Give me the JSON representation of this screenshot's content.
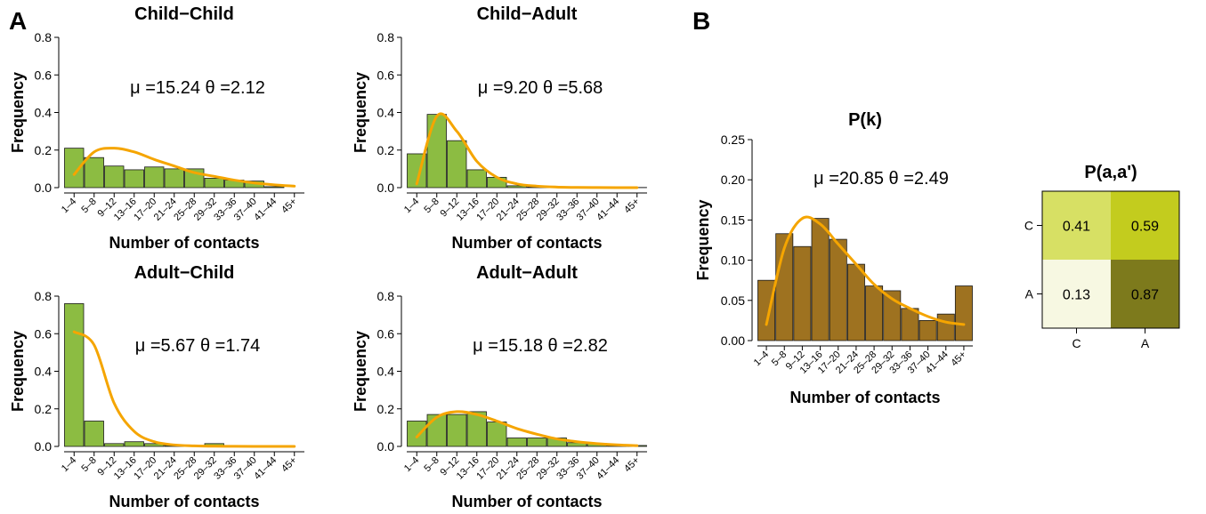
{
  "panels": {
    "a_label": "A",
    "b_label": "B"
  },
  "chart_data": [
    {
      "id": "cc",
      "type": "bar",
      "title": "Child−Child",
      "xlabel": "Number of contacts",
      "ylabel": "Frequency",
      "categories": [
        "1–4",
        "5–8",
        "9–12",
        "13–16",
        "17–20",
        "21–24",
        "25–28",
        "29–32",
        "33–36",
        "37–40",
        "41–44",
        "45+"
      ],
      "values": [
        0.21,
        0.16,
        0.115,
        0.095,
        0.11,
        0.1,
        0.1,
        0.05,
        0.04,
        0.035,
        0.005,
        0.0
      ],
      "fit": [
        0.07,
        0.19,
        0.21,
        0.19,
        0.15,
        0.115,
        0.08,
        0.06,
        0.04,
        0.025,
        0.015,
        0.008
      ],
      "annotation": "μ =15.24  θ =2.12",
      "ylim": [
        0,
        0.8
      ],
      "yticks": [
        "0.0",
        "0.2",
        "0.4",
        "0.6",
        "0.8"
      ],
      "ytick_values": [
        0,
        0.2,
        0.4,
        0.6,
        0.8
      ],
      "color": "#8cbc42",
      "fit_color": "#f5a500"
    },
    {
      "id": "ca",
      "type": "bar",
      "title": "Child−Adult",
      "xlabel": "Number of contacts",
      "ylabel": "Frequency",
      "categories": [
        "1–4",
        "5–8",
        "9–12",
        "13–16",
        "17–20",
        "21–24",
        "25–28",
        "29–32",
        "33–36",
        "37–40",
        "41–44",
        "45+"
      ],
      "values": [
        0.18,
        0.39,
        0.25,
        0.095,
        0.055,
        0.01,
        0.004,
        0.003,
        0.002,
        0.001,
        0.001,
        0.001
      ],
      "fit": [
        0.02,
        0.38,
        0.3,
        0.14,
        0.055,
        0.02,
        0.008,
        0.003,
        0.001,
        0.0005,
        0.0002,
        0.0001
      ],
      "annotation": "μ =9.20  θ =5.68",
      "ylim": [
        0,
        0.8
      ],
      "yticks": [
        "0.0",
        "0.2",
        "0.4",
        "0.6",
        "0.8"
      ],
      "ytick_values": [
        0,
        0.2,
        0.4,
        0.6,
        0.8
      ],
      "color": "#8cbc42",
      "fit_color": "#f5a500"
    },
    {
      "id": "ac",
      "type": "bar",
      "title": "Adult−Child",
      "xlabel": "Number of contacts",
      "ylabel": "Frequency",
      "categories": [
        "1–4",
        "5–8",
        "9–12",
        "13–16",
        "17–20",
        "21–24",
        "25–28",
        "29–32",
        "33–36",
        "37–40",
        "41–44",
        "45+"
      ],
      "values": [
        0.76,
        0.135,
        0.015,
        0.025,
        0.015,
        0.005,
        0.003,
        0.015,
        0.003,
        0.003,
        0.003,
        0.0
      ],
      "fit": [
        0.61,
        0.54,
        0.23,
        0.08,
        0.025,
        0.008,
        0.003,
        0.001,
        0.0005,
        0.0002,
        0.0001,
        0.0
      ],
      "annotation": "μ =5.67  θ =1.74",
      "ylim": [
        0,
        0.8
      ],
      "yticks": [
        "0.0",
        "0.2",
        "0.4",
        "0.6",
        "0.8"
      ],
      "ytick_values": [
        0,
        0.2,
        0.4,
        0.6,
        0.8
      ],
      "color": "#8cbc42",
      "fit_color": "#f5a500"
    },
    {
      "id": "aa",
      "type": "bar",
      "title": "Adult−Adult",
      "xlabel": "Number of contacts",
      "ylabel": "Frequency",
      "categories": [
        "1–4",
        "5–8",
        "9–12",
        "13–16",
        "17–20",
        "21–24",
        "25–28",
        "29–32",
        "33–36",
        "37–40",
        "41–44",
        "45+"
      ],
      "values": [
        0.135,
        0.17,
        0.17,
        0.185,
        0.13,
        0.045,
        0.045,
        0.045,
        0.02,
        0.015,
        0.005,
        0.005
      ],
      "fit": [
        0.05,
        0.155,
        0.185,
        0.17,
        0.135,
        0.095,
        0.065,
        0.04,
        0.025,
        0.015,
        0.008,
        0.004
      ],
      "annotation": "μ =15.18  θ =2.82",
      "ylim": [
        0,
        0.8
      ],
      "yticks": [
        "0.0",
        "0.2",
        "0.4",
        "0.6",
        "0.8"
      ],
      "ytick_values": [
        0,
        0.2,
        0.4,
        0.6,
        0.8
      ],
      "color": "#8cbc42",
      "fit_color": "#f5a500"
    },
    {
      "id": "pk",
      "type": "bar",
      "title": "P(k)",
      "xlabel": "Number of contacts",
      "ylabel": "Frequency",
      "categories": [
        "1–4",
        "5–8",
        "9–12",
        "13–16",
        "17–20",
        "21–24",
        "25–28",
        "29–32",
        "33–36",
        "37–40",
        "41–44",
        "45+"
      ],
      "values": [
        0.075,
        0.133,
        0.117,
        0.152,
        0.126,
        0.095,
        0.068,
        0.062,
        0.04,
        0.025,
        0.033,
        0.068
      ],
      "fit": [
        0.02,
        0.115,
        0.152,
        0.145,
        0.12,
        0.095,
        0.07,
        0.052,
        0.04,
        0.03,
        0.023,
        0.02
      ],
      "annotation": "μ =20.85  θ =2.49",
      "ylim": [
        0,
        0.25
      ],
      "yticks": [
        "0.00",
        "0.05",
        "0.10",
        "0.15",
        "0.20",
        "0.25"
      ],
      "ytick_values": [
        0,
        0.05,
        0.1,
        0.15,
        0.2,
        0.25
      ],
      "color": "#9e7220",
      "fit_color": "#f5a500"
    },
    {
      "id": "paa",
      "type": "heatmap",
      "title": "P(a,a')",
      "rows": [
        "C",
        "A"
      ],
      "cols": [
        "C",
        "A"
      ],
      "cells": [
        {
          "label": "0.41",
          "value": 0.41,
          "color": "#d7e064"
        },
        {
          "label": "0.59",
          "value": 0.59,
          "color": "#c3cc1e"
        },
        {
          "label": "0.13",
          "value": 0.13,
          "color": "#f7f8e2"
        },
        {
          "label": "0.87",
          "value": 0.87,
          "color": "#7d7a1c"
        }
      ]
    }
  ]
}
